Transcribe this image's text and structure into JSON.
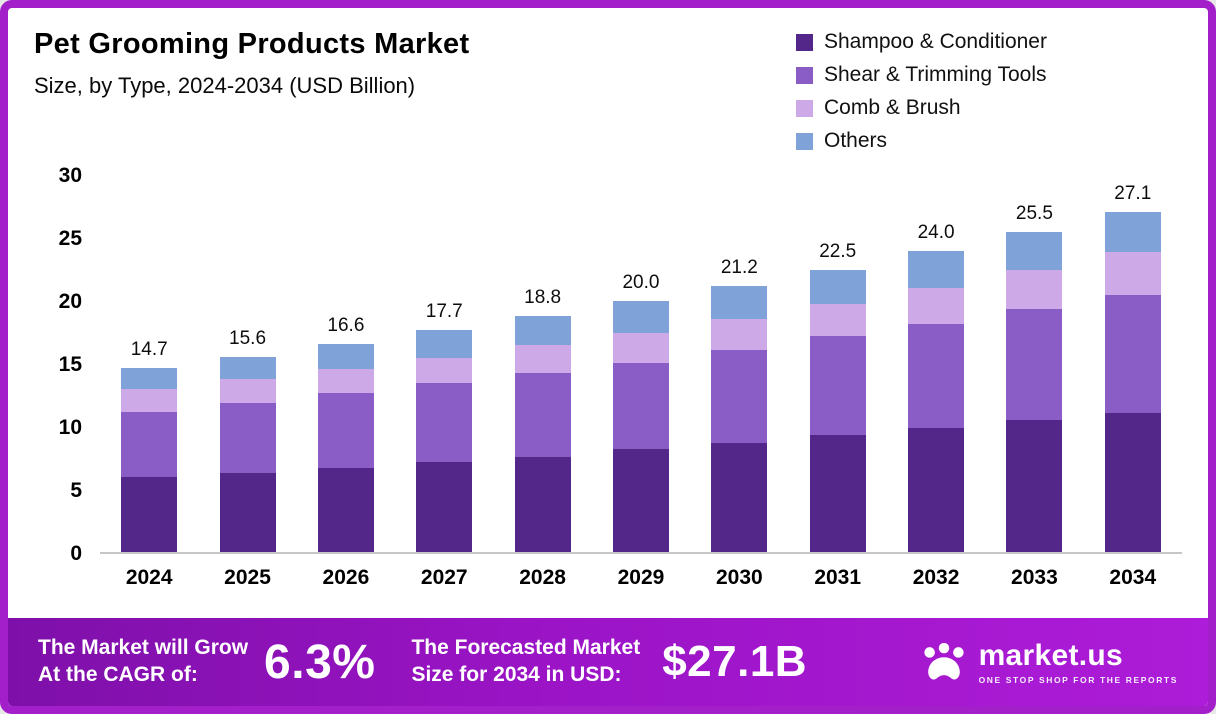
{
  "header": {
    "title": "Pet Grooming Products Market",
    "subtitle": "Size, by Type, 2024-2034 (USD Billion)"
  },
  "legend": [
    {
      "label": "Shampoo & Conditioner",
      "color": "#53268a"
    },
    {
      "label": "Shear & Trimming Tools",
      "color": "#8a5cc6"
    },
    {
      "label": "Comb & Brush",
      "color": "#cda9e8"
    },
    {
      "label": "Others",
      "color": "#7fa3d8"
    }
  ],
  "chart_data": {
    "type": "bar",
    "stacked": true,
    "title": "Pet Grooming Products Market Size, by Type, 2024-2034 (USD Billion)",
    "xlabel": "Year",
    "ylabel": "USD Billion",
    "ylim": [
      0,
      30
    ],
    "yticks": [
      0,
      5,
      10,
      15,
      20,
      25,
      30
    ],
    "grid": false,
    "legend_position": "top-right",
    "categories": [
      "2024",
      "2025",
      "2026",
      "2027",
      "2028",
      "2029",
      "2030",
      "2031",
      "2032",
      "2033",
      "2034"
    ],
    "series": [
      {
        "name": "Shampoo & Conditioner",
        "color": "#53268a",
        "values": [
          6.0,
          6.3,
          6.7,
          7.2,
          7.6,
          8.2,
          8.7,
          9.3,
          9.9,
          10.5,
          11.1
        ]
      },
      {
        "name": "Shear & Trimming Tools",
        "color": "#8a5cc6",
        "values": [
          5.2,
          5.6,
          6.0,
          6.3,
          6.7,
          6.9,
          7.4,
          7.9,
          8.3,
          8.9,
          9.4
        ]
      },
      {
        "name": "Comb & Brush",
        "color": "#cda9e8",
        "values": [
          1.8,
          1.9,
          1.9,
          2.0,
          2.2,
          2.4,
          2.5,
          2.6,
          2.9,
          3.1,
          3.4
        ]
      },
      {
        "name": "Others",
        "color": "#7fa3d8",
        "values": [
          1.7,
          1.8,
          2.0,
          2.2,
          2.3,
          2.5,
          2.6,
          2.7,
          2.9,
          3.0,
          3.2
        ]
      }
    ],
    "totals_display": [
      "14.7",
      "15.6",
      "16.6",
      "17.7",
      "18.8",
      "20.0",
      "21.2",
      "22.5",
      "24.0",
      "25.5",
      "27.1"
    ]
  },
  "banner": {
    "cagr_label_lines": [
      "The Market will Grow",
      "At the CAGR of:"
    ],
    "cagr_value": "6.3%",
    "forecast_label_lines": [
      "The Forecasted Market",
      "Size for 2034 in USD:"
    ],
    "forecast_value": "$27.1B",
    "brand_name": "market.us",
    "brand_tagline": "ONE STOP SHOP FOR THE REPORTS"
  },
  "colors": {
    "frame_border": "#a21fc9",
    "banner_gradient_start": "#7e10a9",
    "banner_gradient_end": "#ad1cd8",
    "axis_line": "#c6c6c6",
    "text": "#000000",
    "banner_text": "#ffffff"
  }
}
